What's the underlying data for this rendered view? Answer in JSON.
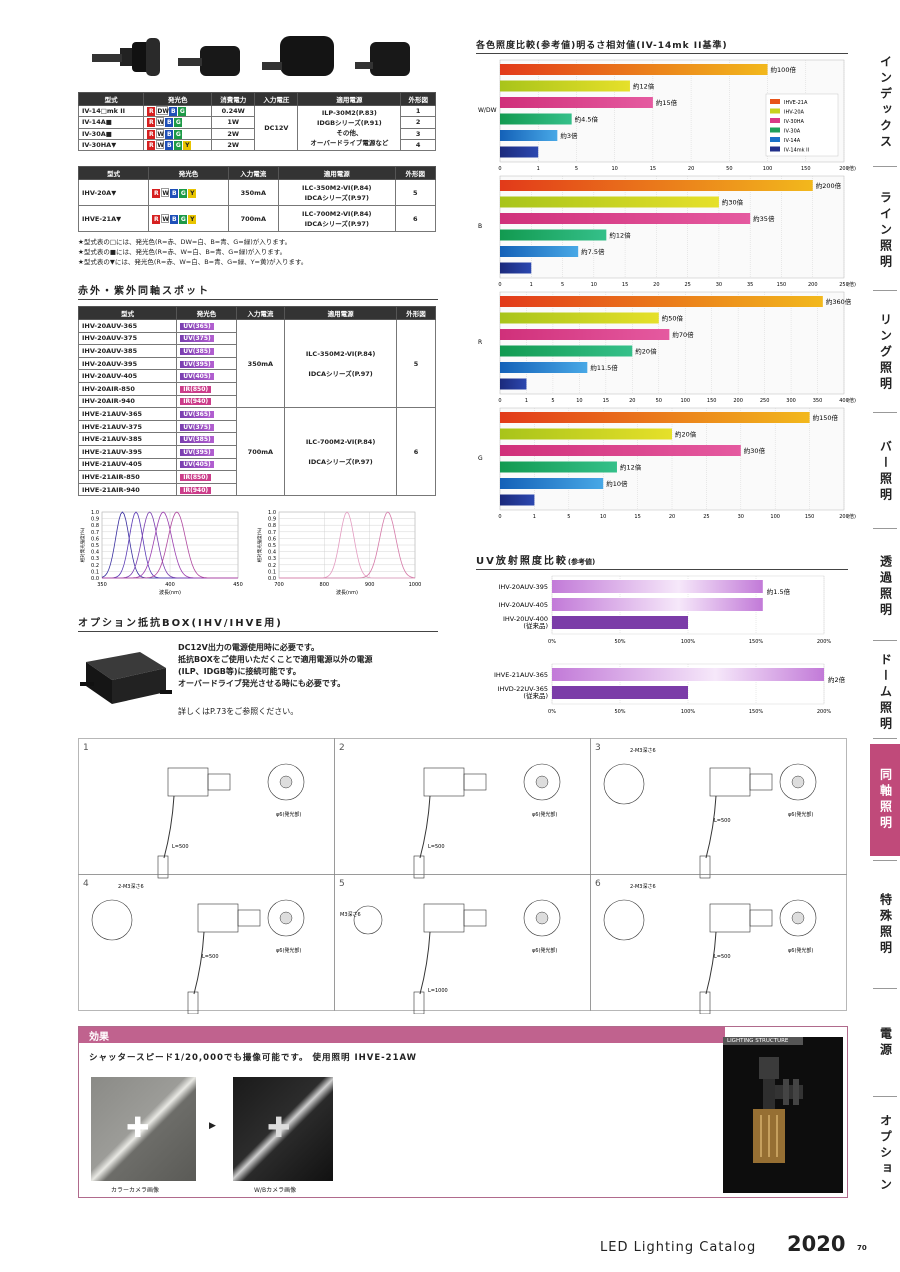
{
  "spec_table1": {
    "headers": [
      "型式",
      "発光色",
      "消費電力",
      "入力電圧",
      "適用電源",
      "外形図"
    ],
    "rows": [
      {
        "model": "IV-14□mk II",
        "colors": [
          "R",
          "DW",
          "B",
          "G"
        ],
        "power": "0.24W",
        "fig": "1"
      },
      {
        "model": "IV-14A■",
        "colors": [
          "R",
          "W",
          "B",
          "G"
        ],
        "power": "1W",
        "fig": "2"
      },
      {
        "model": "IV-30A■",
        "colors": [
          "R",
          "W",
          "B",
          "G"
        ],
        "power": "2W",
        "fig": "3"
      },
      {
        "model": "IV-30HA▼",
        "colors": [
          "R",
          "W",
          "B",
          "G",
          "Y"
        ],
        "power": "2W",
        "fig": "4"
      }
    ],
    "voltage": "DC12V",
    "supply_lines": [
      "ILP-30M2(P.83)",
      "IDGBシリーズ(P.91)",
      "その他、",
      "オーバードライブ電源など"
    ]
  },
  "spec_table2": {
    "headers": [
      "型式",
      "発光色",
      "入力電流",
      "適用電源",
      "外形図"
    ],
    "rows": [
      {
        "model": "IHV-20A▼",
        "colors": [
          "R",
          "W",
          "B",
          "G",
          "Y"
        ],
        "current": "350mA",
        "supply1": "ILC-350M2-VI(P.84)",
        "supply2": "IDCAシリーズ(P.97)",
        "fig": "5"
      },
      {
        "model": "IHVE-21A▼",
        "colors": [
          "R",
          "W",
          "B",
          "G",
          "Y"
        ],
        "current": "700mA",
        "supply1": "ILC-700M2-VI(P.84)",
        "supply2": "IDCAシリーズ(P.97)",
        "fig": "6"
      }
    ]
  },
  "notes": [
    "★型式表の□には、発光色(R=赤、DW=白、B=青、G=緑)が入ります。",
    "★型式表の■には、発光色(R=赤、W=白、B=青、G=緑)が入ります。",
    "★型式表の▼には、発光色(R=赤、W=白、B=青、G=緑、Y=黄)が入ります。"
  ],
  "uvir_title": "赤外・紫外同軸スポット",
  "uvir_table": {
    "headers": [
      "型式",
      "発光色",
      "入力電流",
      "適用電源",
      "外形図"
    ],
    "rows": [
      {
        "model": "IHV-20AUV-365",
        "color": "UV(365)"
      },
      {
        "model": "IHV-20AUV-375",
        "color": "UV(375)"
      },
      {
        "model": "IHV-20AUV-385",
        "color": "UV(385)"
      },
      {
        "model": "IHV-20AUV-395",
        "color": "UV(395)"
      },
      {
        "model": "IHV-20AUV-405",
        "color": "UV(405)"
      },
      {
        "model": "IHV-20AIR-850",
        "color": "IR(850)"
      },
      {
        "model": "IHV-20AIR-940",
        "color": "IR(940)"
      },
      {
        "model": "IHVE-21AUV-365",
        "color": "UV(365)"
      },
      {
        "model": "IHVE-21AUV-375",
        "color": "UV(375)"
      },
      {
        "model": "IHVE-21AUV-385",
        "color": "UV(385)"
      },
      {
        "model": "IHVE-21AUV-395",
        "color": "UV(395)"
      },
      {
        "model": "IHVE-21AUV-405",
        "color": "UV(405)"
      },
      {
        "model": "IHVE-21AIR-850",
        "color": "IR(850)"
      },
      {
        "model": "IHVE-21AIR-940",
        "color": "IR(940)"
      }
    ],
    "group1": {
      "current": "350mA",
      "supply1": "ILC-350M2-VI(P.84)",
      "supply2": "IDCAシリーズ(P.97)",
      "fig": "5"
    },
    "group2": {
      "current": "700mA",
      "supply1": "ILC-700M2-VI(P.84)",
      "supply2": "IDCAシリーズ(P.97)",
      "fig": "6"
    }
  },
  "spectrum": {
    "ylabel": "相対発光強度(%)",
    "xlabel": "波長(nm)",
    "y_ticks": [
      "1.0",
      "0.9",
      "0.8",
      "0.7",
      "0.6",
      "0.5",
      "0.4",
      "0.3",
      "0.2",
      "0.1",
      "0.0"
    ],
    "uv_x_ticks": [
      "350",
      "400",
      "450"
    ],
    "ir_x_ticks": [
      "700",
      "800",
      "900",
      "1000"
    ]
  },
  "option_title": "オプション抵抗BOX(IHV/IHVE用)",
  "option_text": [
    "DC12V出力の電源使用時に必要です。",
    "抵抗BOXをご使用いただくことで適用電源以外の電源",
    "(ILP、IDGB等)に接続可能です。",
    "オーバードライブ発光させる時にも必要です。"
  ],
  "option_ref": "詳しくはP.73をご参照ください。",
  "compare_title": "各色照度比較(参考値)明るさ相対値(IV-14mk II基準)",
  "legend": [
    "IHVE-21A",
    "IHV-20A",
    "IV-30HA",
    "IV-30A",
    "IV-14A",
    "IV-14mk II"
  ],
  "chart_data": [
    {
      "type": "bar",
      "group": "W/DW",
      "series": [
        "IHVE-21A",
        "IHV-20A",
        "IV-30HA",
        "IV-30A",
        "IV-14A",
        "IV-14mk II"
      ],
      "values": [
        100,
        12,
        15,
        4.5,
        3,
        1
      ],
      "labels": [
        "約100倍",
        "約12倍",
        "約15倍",
        "約4.5倍",
        "約3倍",
        ""
      ],
      "x_ticks": [
        "0",
        "1",
        "5",
        "10",
        "15",
        "20",
        "50",
        "100",
        "150",
        "200"
      ],
      "unit": "(倍)"
    },
    {
      "type": "bar",
      "group": "B",
      "series": [
        "IHVE-21A",
        "IHV-20A",
        "IV-30HA",
        "IV-30A",
        "IV-14A",
        "IV-14mk II"
      ],
      "values": [
        200,
        30,
        35,
        12,
        7.5,
        1
      ],
      "labels": [
        "約200倍",
        "約30倍",
        "約35倍",
        "約12倍",
        "約7.5倍",
        ""
      ],
      "x_ticks": [
        "0",
        "1",
        "5",
        "10",
        "15",
        "20",
        "25",
        "30",
        "35",
        "150",
        "200",
        "250"
      ],
      "unit": "(倍)"
    },
    {
      "type": "bar",
      "group": "R",
      "series": [
        "IHVE-21A",
        "IHV-20A",
        "IV-30HA",
        "IV-30A",
        "IV-14A",
        "IV-14mk II"
      ],
      "values": [
        360,
        50,
        70,
        20,
        11.5,
        1
      ],
      "labels": [
        "約360倍",
        "約50倍",
        "約70倍",
        "約20倍",
        "約11.5倍",
        ""
      ],
      "x_ticks": [
        "0",
        "1",
        "5",
        "10",
        "15",
        "20",
        "50",
        "100",
        "150",
        "200",
        "250",
        "300",
        "350",
        "400"
      ],
      "unit": "(倍)"
    },
    {
      "type": "bar",
      "group": "G",
      "series": [
        "IHVE-21A",
        "IHV-20A",
        "IV-30HA",
        "IV-30A",
        "IV-14A",
        "IV-14mk II"
      ],
      "values": [
        150,
        20,
        30,
        12,
        10,
        1
      ],
      "labels": [
        "約150倍",
        "約20倍",
        "約30倍",
        "約12倍",
        "約10倍",
        ""
      ],
      "x_ticks": [
        "0",
        "1",
        "5",
        "10",
        "15",
        "20",
        "25",
        "30",
        "100",
        "150",
        "200"
      ],
      "unit": "(倍)"
    },
    {
      "type": "bar",
      "group": "UV1",
      "categories": [
        "IHV-20AUV-395",
        "IHV-20AUV-405",
        "IHV-20UV-400 (従来品)"
      ],
      "values": [
        155,
        155,
        100
      ],
      "labels": [
        "約1.5倍"
      ],
      "x_ticks": [
        "0%",
        "50%",
        "100%",
        "150%",
        "200%"
      ]
    },
    {
      "type": "bar",
      "group": "UV2",
      "categories": [
        "IHVE-21AUV-365",
        "IHVD-22UV-365 (従来品)"
      ],
      "values": [
        200,
        100
      ],
      "labels": [
        "約2倍"
      ],
      "x_ticks": [
        "0%",
        "50%",
        "100%",
        "150%",
        "200%"
      ]
    }
  ],
  "uv_title": "UV放射照度比較",
  "uv_title_sub": "(参考値)",
  "uv_cats": {
    "a": "IHV-20AUV-395",
    "b": "IHV-20AUV-405",
    "c1": "IHV-20UV-400",
    "c2": "(従来品)",
    "d": "IHVE-21AUV-365",
    "e1": "IHVD-22UV-365",
    "e2": "(従来品)",
    "l1": "約1.5倍",
    "l2": "約2倍"
  },
  "drawings": {
    "nums": [
      "1",
      "2",
      "3",
      "4",
      "5",
      "6"
    ],
    "phi6": "φ6(発光部)",
    "m3": "2-M3深さ6",
    "m3b": "M3深さ6",
    "l500": "L=500",
    "l1000": "L=1000"
  },
  "effect": {
    "title": "効果",
    "desc": "シャッタースピード1/20,000でも撮像可能です。 使用照明 IHVE-21AW",
    "cap1": "カラーカメラ画像",
    "cap2": "W/Bカメラ画像",
    "structure": "LIGHTING STRUCTURE"
  },
  "sidebar": [
    "インデックス",
    "ライン照明",
    "リング照明",
    "バー照明",
    "透過照明",
    "ドーム照明",
    "同軸照明",
    "特殊照明",
    "電源",
    "オプション"
  ],
  "footer": {
    "catalog": "LED Lighting Catalog",
    "year": "2020",
    "page": "70"
  }
}
